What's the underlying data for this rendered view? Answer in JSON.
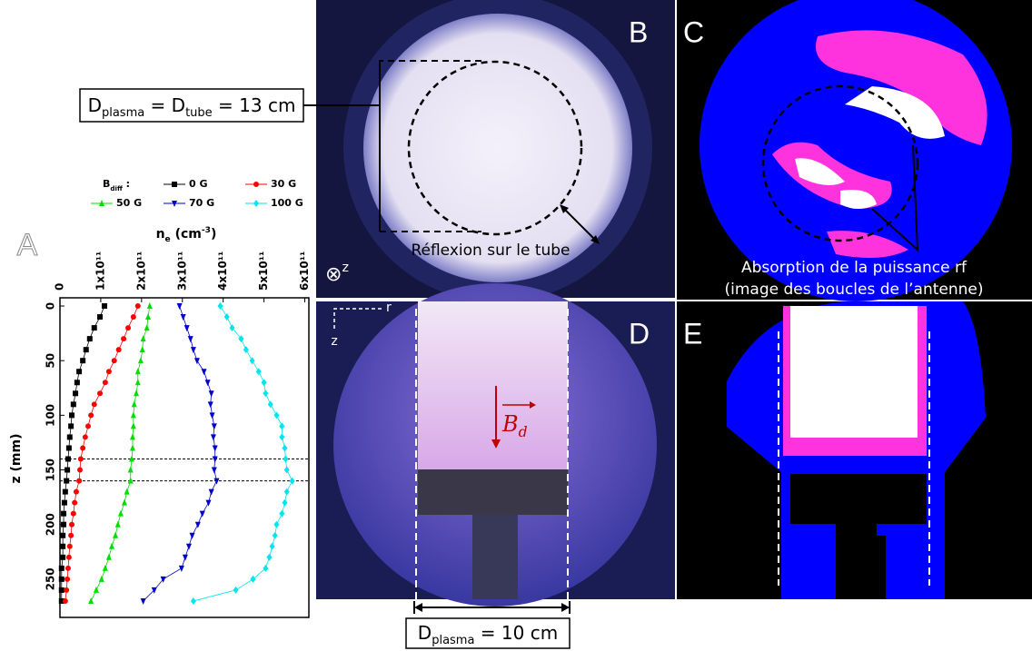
{
  "chart_data": {
    "type": "scatter",
    "panel_label": "A",
    "xlabel_parts": [
      "n",
      "e",
      " (cm",
      "-3",
      ")"
    ],
    "ylabel": "z (mm)",
    "legend_title_parts": [
      "B",
      "diff",
      " :"
    ],
    "z": [
      0,
      10,
      20,
      30,
      40,
      50,
      60,
      70,
      80,
      90,
      100,
      110,
      120,
      130,
      140,
      150,
      160,
      170,
      180,
      190,
      200,
      210,
      220,
      230,
      240,
      250,
      260,
      270
    ],
    "series": [
      {
        "name": "0 G",
        "color": "#000000",
        "marker": "square",
        "values": [
          109000000000.0,
          98000000000.0,
          84000000000.0,
          73000000000.0,
          64000000000.0,
          56000000000.0,
          47000000000.0,
          42000000000.0,
          38000000000.0,
          33000000000.0,
          29000000000.0,
          27000000000.0,
          24000000000.0,
          22000000000.0,
          20000000000.0,
          18000000000.0,
          16000000000.0,
          13000000000.0,
          11000000000.0,
          9000000000.0,
          9000000000.0,
          7000000000.0,
          7000000000.0,
          7000000000.0,
          4000000000.0,
          4000000000.0,
          4000000000.0,
          4000000000.0
        ]
      },
      {
        "name": "30 G",
        "color": "#ff0000",
        "marker": "circle",
        "values": [
          191000000000.0,
          180000000000.0,
          167000000000.0,
          156000000000.0,
          144000000000.0,
          133000000000.0,
          120000000000.0,
          111000000000.0,
          98000000000.0,
          84000000000.0,
          76000000000.0,
          69000000000.0,
          62000000000.0,
          56000000000.0,
          51000000000.0,
          49000000000.0,
          47000000000.0,
          40000000000.0,
          36000000000.0,
          33000000000.0,
          29000000000.0,
          27000000000.0,
          24000000000.0,
          22000000000.0,
          20000000000.0,
          18000000000.0,
          16000000000.0,
          13000000000.0
        ]
      },
      {
        "name": "50 G",
        "color": "#00dd00",
        "marker": "triangle-up",
        "values": [
          220000000000.0,
          216000000000.0,
          213000000000.0,
          204000000000.0,
          202000000000.0,
          198000000000.0,
          191000000000.0,
          191000000000.0,
          187000000000.0,
          182000000000.0,
          180000000000.0,
          180000000000.0,
          178000000000.0,
          178000000000.0,
          176000000000.0,
          173000000000.0,
          173000000000.0,
          164000000000.0,
          158000000000.0,
          149000000000.0,
          142000000000.0,
          136000000000.0,
          127000000000.0,
          120000000000.0,
          111000000000.0,
          102000000000.0,
          89000000000.0,
          76000000000.0
        ]
      },
      {
        "name": "70 G",
        "color": "#0000cc",
        "marker": "triangle-down",
        "values": [
          293000000000.0,
          302000000000.0,
          311000000000.0,
          320000000000.0,
          327000000000.0,
          336000000000.0,
          353000000000.0,
          362000000000.0,
          371000000000.0,
          369000000000.0,
          373000000000.0,
          378000000000.0,
          376000000000.0,
          380000000000.0,
          380000000000.0,
          378000000000.0,
          384000000000.0,
          371000000000.0,
          364000000000.0,
          349000000000.0,
          338000000000.0,
          324000000000.0,
          316000000000.0,
          307000000000.0,
          298000000000.0,
          253000000000.0,
          231000000000.0,
          204000000000.0
        ]
      },
      {
        "name": "100 G",
        "color": "#00e5ee",
        "marker": "diamond",
        "values": [
          393000000000.0,
          409000000000.0,
          422000000000.0,
          444000000000.0,
          456000000000.0,
          471000000000.0,
          487000000000.0,
          500000000000.0,
          504000000000.0,
          516000000000.0,
          531000000000.0,
          544000000000.0,
          544000000000.0,
          551000000000.0,
          553000000000.0,
          556000000000.0,
          569000000000.0,
          556000000000.0,
          551000000000.0,
          544000000000.0,
          531000000000.0,
          527000000000.0,
          520000000000.0,
          513000000000.0,
          504000000000.0,
          473000000000.0,
          431000000000.0,
          327000000000.0
        ]
      }
    ],
    "xlim": [
      0,
      610000000000.0
    ],
    "xticks": [
      0,
      {
        "value": 100000000000.0,
        "label": "1x10¹¹"
      },
      {
        "value": 200000000000.0,
        "label": "2x10¹¹"
      },
      {
        "value": 300000000000.0,
        "label": "3x10¹¹"
      },
      {
        "value": 400000000000.0,
        "label": "4x10¹¹"
      },
      {
        "value": 500000000000.0,
        "label": "5x10¹¹"
      },
      {
        "value": 600000000000.0,
        "label": "6x10¹¹"
      }
    ],
    "ylim": [
      -7.5,
      285
    ],
    "yticks": [
      0,
      50,
      100,
      150,
      200,
      250
    ],
    "y_inverted": true,
    "hlines": [
      140,
      160
    ]
  },
  "panels": {
    "B": {
      "label": "B",
      "annotation": "Réflexion sur le tube",
      "axis_symbol": "⊗",
      "axis_name": "z"
    },
    "C": {
      "label": "C",
      "caption_line1": "Absorption de la puissance rf",
      "caption_line2": "(image des boucles de l’antenne)"
    },
    "D": {
      "label": "D",
      "axis_r": "r",
      "axis_z": "z",
      "field_parts": [
        "B",
        "d"
      ]
    },
    "E": {
      "label": "E"
    }
  },
  "callouts": {
    "tube": {
      "parts": [
        "D",
        "plasma",
        " = D",
        "tube",
        " = 13 cm"
      ]
    },
    "plasma": {
      "parts": [
        "D",
        "plasma",
        " = 10 cm"
      ]
    }
  }
}
